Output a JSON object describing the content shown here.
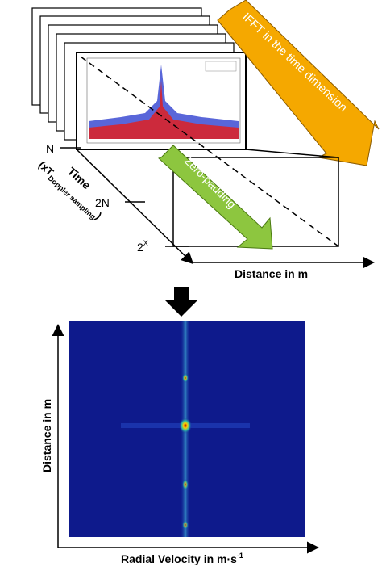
{
  "diagram": {
    "ifft_label": "IFFT in the time dimension",
    "zero_padding_label": "Zero-padding",
    "time_axis": {
      "title": "Time",
      "unit_prefix": "(xT",
      "unit_sub": "Doppler sampling",
      "unit_suffix": ")"
    },
    "ticks": {
      "n": "N",
      "two_n": "2N",
      "pow_base": "2",
      "pow_exp": "X"
    },
    "distance_axis_label": "Distance in m",
    "map": {
      "y_label": "Distance in m",
      "x_label": "Radial Velocity in m·s",
      "x_label_exp": "-1"
    }
  }
}
